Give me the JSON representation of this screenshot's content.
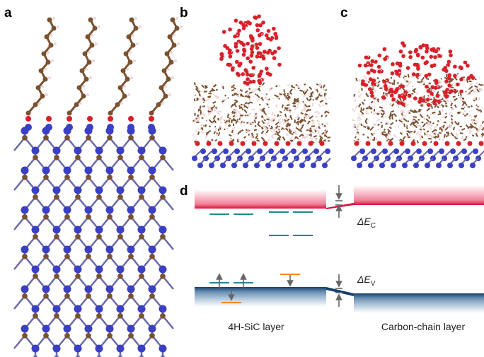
{
  "panel_labels": [
    "a",
    "b",
    "c",
    "d"
  ],
  "diagram": {
    "delta_ec": {
      "symbol": "ΔE",
      "subscript": "C"
    },
    "delta_ev": {
      "symbol": "ΔE",
      "subscript": "V"
    },
    "left_layer": "4H-SiC layer",
    "right_layer": "Carbon-chain layer"
  }
}
